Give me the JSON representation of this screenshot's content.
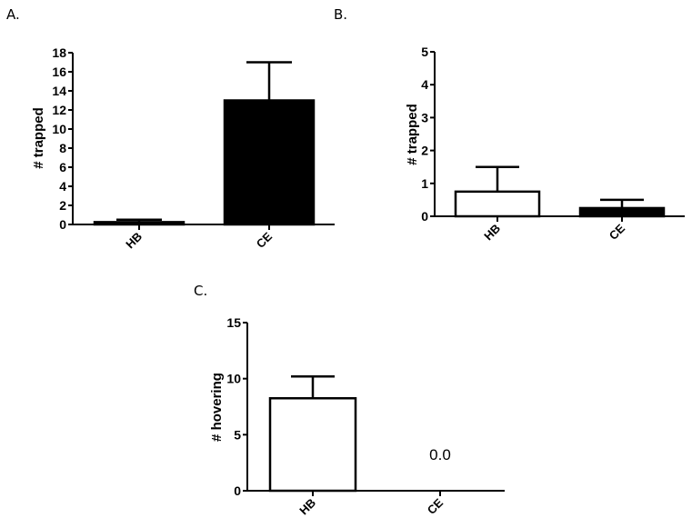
{
  "figure": {
    "panels": [
      {
        "label": "A."
      },
      {
        "label": "B."
      },
      {
        "label": "C."
      }
    ]
  },
  "colors": {
    "axis": "#000000",
    "bar_black": "#000000",
    "bar_white": "#ffffff"
  },
  "chart_data": [
    {
      "panel": "A.",
      "type": "bar",
      "title": "",
      "xlabel": "",
      "ylabel": "# trapped",
      "categories": [
        "HB",
        "CE"
      ],
      "values": [
        0.25,
        13.0
      ],
      "error_upper": [
        0.5,
        17.0
      ],
      "bar_fill": [
        "#000000",
        "#000000"
      ],
      "ylim": [
        0,
        18
      ],
      "yticks": [
        0,
        2,
        4,
        6,
        8,
        10,
        12,
        14,
        16,
        18
      ],
      "grid": false,
      "legend": null
    },
    {
      "panel": "B.",
      "type": "bar",
      "title": "",
      "xlabel": "",
      "ylabel": "# trapped",
      "categories": [
        "HB",
        "CE"
      ],
      "values": [
        0.75,
        0.25
      ],
      "error_upper": [
        1.5,
        0.5
      ],
      "bar_fill": [
        "#ffffff",
        "#000000"
      ],
      "ylim": [
        0,
        5
      ],
      "yticks": [
        0,
        1,
        2,
        3,
        4,
        5
      ],
      "grid": false,
      "legend": null
    },
    {
      "panel": "C.",
      "type": "bar",
      "title": "",
      "xlabel": "",
      "ylabel": "# hovering",
      "categories": [
        "HB",
        "CE"
      ],
      "values": [
        8.25,
        0.0
      ],
      "error_upper": [
        10.2,
        0.0
      ],
      "bar_fill": [
        "#ffffff",
        "#000000"
      ],
      "ylim": [
        0,
        15
      ],
      "yticks": [
        0,
        5,
        10,
        15
      ],
      "annotations": [
        {
          "category": "CE",
          "text": "0.0"
        }
      ],
      "grid": false,
      "legend": null
    }
  ]
}
